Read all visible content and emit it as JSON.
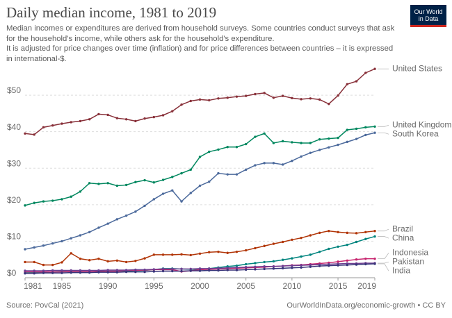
{
  "chart_data": {
    "type": "line",
    "title": "Daily median income, 1981 to 2019",
    "subtitle": [
      "Median incomes or expenditures are derived from household surveys. Some countries conduct surveys that ask for the household's income, while others ask for the household's expenditure.",
      "It is adjusted for price changes over time (inflation) and for price differences between countries – it is expressed in international-$."
    ],
    "logo": [
      "Our World",
      "in Data"
    ],
    "source": "Source: PovCal (2021)",
    "credit": "OurWorldInData.org/economic-growth • CC BY",
    "x": [
      1981,
      1982,
      1983,
      1984,
      1985,
      1986,
      1987,
      1988,
      1989,
      1990,
      1991,
      1992,
      1993,
      1994,
      1995,
      1996,
      1997,
      1998,
      1999,
      2000,
      2001,
      2002,
      2003,
      2004,
      2005,
      2006,
      2007,
      2008,
      2009,
      2010,
      2011,
      2012,
      2013,
      2014,
      2015,
      2016,
      2017,
      2018,
      2019
    ],
    "xlim": [
      1981,
      2019
    ],
    "xticks": [
      1981,
      1985,
      1990,
      1995,
      2000,
      2005,
      2010,
      2015,
      2019
    ],
    "ylim": [
      0,
      58
    ],
    "yticks": [
      {
        "value": 0,
        "label": "$0"
      },
      {
        "value": 10,
        "label": "$10"
      },
      {
        "value": 20,
        "label": "$20"
      },
      {
        "value": 30,
        "label": "$30"
      },
      {
        "value": 40,
        "label": "$40"
      },
      {
        "value": 50,
        "label": "$50"
      }
    ],
    "grid": true,
    "series": [
      {
        "name": "United States",
        "color": "#883039",
        "values": [
          39.5,
          39.2,
          41.2,
          41.7,
          42.2,
          42.6,
          42.9,
          43.4,
          44.8,
          44.6,
          43.7,
          43.4,
          42.9,
          43.6,
          44.0,
          44.5,
          45.6,
          47.4,
          48.4,
          48.8,
          48.6,
          49.1,
          49.3,
          49.6,
          49.8,
          50.3,
          50.6,
          49.3,
          49.8,
          49.2,
          48.9,
          49.1,
          48.8,
          47.6,
          49.9,
          53.0,
          53.8,
          56.1,
          57.2
        ]
      },
      {
        "name": "United Kingdom",
        "color": "#00875E",
        "values": [
          19.8,
          20.5,
          20.9,
          21.1,
          21.5,
          22.2,
          23.6,
          25.9,
          25.7,
          25.9,
          25.2,
          25.4,
          26.2,
          26.7,
          26.1,
          26.8,
          27.6,
          28.6,
          29.6,
          33.1,
          34.5,
          35.1,
          35.8,
          35.8,
          36.6,
          38.6,
          39.5,
          36.9,
          37.4,
          37.1,
          36.9,
          36.9,
          37.9,
          38.1,
          38.3,
          40.5,
          40.8,
          41.2,
          41.4
        ]
      },
      {
        "name": "South Korea",
        "color": "#4C6A9C",
        "values": [
          7.8,
          8.3,
          8.8,
          9.4,
          10.0,
          10.8,
          11.6,
          12.5,
          13.7,
          14.8,
          16.0,
          17.0,
          18.1,
          19.7,
          21.5,
          23.0,
          23.9,
          20.9,
          23.2,
          25.2,
          26.3,
          28.6,
          28.3,
          28.3,
          29.6,
          30.8,
          31.4,
          31.4,
          31.0,
          32.0,
          33.2,
          34.2,
          35.0,
          35.7,
          36.4,
          37.2,
          38.0,
          39.1,
          39.7
        ]
      },
      {
        "name": "Brazil",
        "color": "#B13507",
        "values": [
          4.3,
          4.3,
          3.5,
          3.5,
          4.2,
          6.7,
          5.2,
          4.8,
          5.2,
          4.5,
          4.7,
          4.3,
          4.6,
          5.3,
          6.3,
          6.3,
          6.3,
          6.4,
          6.2,
          6.6,
          7.0,
          7.1,
          6.8,
          7.1,
          7.5,
          8.1,
          8.7,
          9.3,
          9.8,
          10.4,
          10.9,
          11.6,
          12.3,
          12.8,
          12.5,
          12.3,
          12.2,
          12.5,
          12.8
        ]
      },
      {
        "name": "China",
        "color": "#00847E",
        "values": [
          1.3,
          1.4,
          1.5,
          1.6,
          1.7,
          1.7,
          1.7,
          1.8,
          1.7,
          1.8,
          1.8,
          1.8,
          1.9,
          2.0,
          2.2,
          2.5,
          2.5,
          2.4,
          2.3,
          2.3,
          2.5,
          2.8,
          3.1,
          3.3,
          3.7,
          4.0,
          4.3,
          4.5,
          4.9,
          5.3,
          5.8,
          6.3,
          7.1,
          7.9,
          8.5,
          9.0,
          9.8,
          10.6,
          11.3
        ]
      },
      {
        "name": "Indonesia",
        "color": "#C7246E",
        "values": [
          1.6,
          1.6,
          1.6,
          1.6,
          1.6,
          1.7,
          1.7,
          1.7,
          1.8,
          1.8,
          1.8,
          2.0,
          2.0,
          2.1,
          2.2,
          2.2,
          2.2,
          1.7,
          1.9,
          2.2,
          2.3,
          2.4,
          2.5,
          2.6,
          2.7,
          2.8,
          2.9,
          3.1,
          3.2,
          3.4,
          3.5,
          3.7,
          3.9,
          4.1,
          4.4,
          4.7,
          5.0,
          5.2,
          5.2
        ]
      },
      {
        "name": "Pakistan",
        "color": "#6D3E91",
        "values": [
          1.9,
          1.9,
          1.9,
          2.0,
          2.0,
          2.0,
          2.0,
          2.0,
          2.0,
          2.1,
          2.1,
          2.1,
          2.2,
          2.2,
          2.3,
          2.4,
          2.4,
          2.4,
          2.4,
          2.5,
          2.5,
          2.6,
          2.7,
          2.8,
          2.9,
          3.0,
          3.1,
          3.1,
          3.2,
          3.3,
          3.4,
          3.5,
          3.6,
          3.7,
          3.8,
          3.9,
          3.9,
          4.0,
          4.0
        ]
      },
      {
        "name": "India",
        "color": "#38357A",
        "values": [
          1.2,
          1.2,
          1.3,
          1.3,
          1.3,
          1.4,
          1.4,
          1.4,
          1.5,
          1.5,
          1.5,
          1.6,
          1.6,
          1.6,
          1.7,
          1.8,
          1.8,
          1.8,
          1.9,
          1.9,
          2.0,
          2.0,
          2.1,
          2.1,
          2.2,
          2.3,
          2.4,
          2.5,
          2.6,
          2.7,
          2.8,
          3.0,
          3.2,
          3.3,
          3.4,
          3.5,
          3.6,
          3.7,
          3.8
        ]
      }
    ]
  }
}
